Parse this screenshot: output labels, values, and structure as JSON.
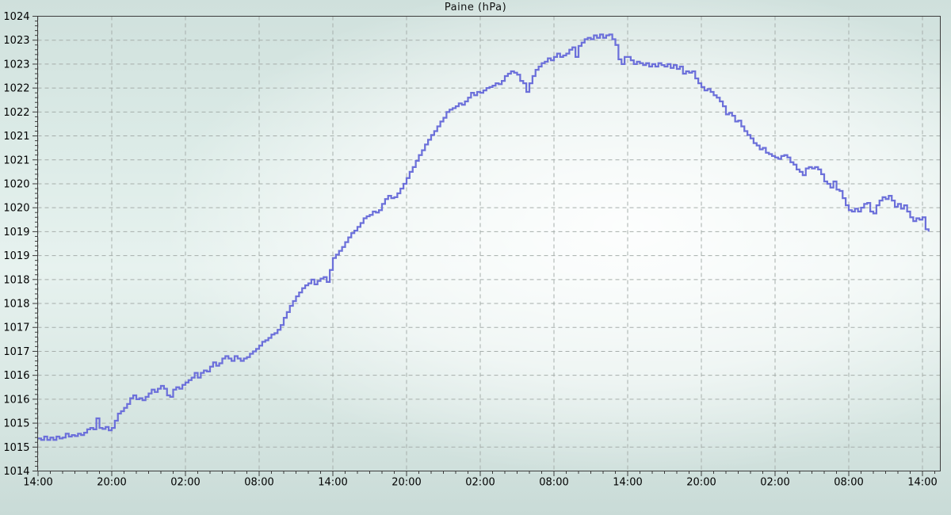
{
  "title": "Paine (hPa)",
  "chart_data": {
    "type": "line",
    "line_style": "step",
    "title": "Paine (hPa)",
    "xlabel": "",
    "ylabel": "",
    "legend": "none",
    "grid": "dashed",
    "colors": {
      "line": "#6c70da",
      "grid": "#a6aeab",
      "axis": "#3c3c3c",
      "text": "#000000",
      "background_edge": "#cbdcd8",
      "background_highlight": "#f8fcfa"
    },
    "x_unit": "hours_from_start",
    "x_start_hour": 0,
    "x_end_hour": 73.5,
    "x_tick_hours": [
      0,
      6,
      12,
      18,
      24,
      30,
      36,
      42,
      48,
      54,
      60,
      66,
      72
    ],
    "x_tick_labels": [
      "14:00",
      "20:00",
      "02:00",
      "08:00",
      "14:00",
      "20:00",
      "02:00",
      "08:00",
      "14:00",
      "20:00",
      "02:00",
      "08:00",
      "14:00"
    ],
    "x_minor_step_hours": 1,
    "y_min": 1014.0,
    "y_max": 1023.5,
    "y_major_step": 0.5,
    "y_minor_step": 0.1,
    "y_tick_labels_top_to_bottom": [
      "1024",
      "1023",
      "1023",
      "1022",
      "1022",
      "1021",
      "1021",
      "1020",
      "1020",
      "1019",
      "1019",
      "1018",
      "1018",
      "1017",
      "1017",
      "1016",
      "1016",
      "1015",
      "1015",
      "1014"
    ],
    "sample_interval_hours": 0.25,
    "values": [
      1014.68,
      1014.65,
      1014.72,
      1014.65,
      1014.7,
      1014.65,
      1014.72,
      1014.68,
      1014.7,
      1014.78,
      1014.72,
      1014.75,
      1014.73,
      1014.78,
      1014.75,
      1014.8,
      1014.87,
      1014.9,
      1014.87,
      1015.1,
      1014.9,
      1014.88,
      1014.92,
      1014.85,
      1014.9,
      1015.05,
      1015.2,
      1015.25,
      1015.32,
      1015.4,
      1015.52,
      1015.58,
      1015.5,
      1015.52,
      1015.48,
      1015.55,
      1015.62,
      1015.7,
      1015.65,
      1015.72,
      1015.78,
      1015.72,
      1015.58,
      1015.55,
      1015.7,
      1015.75,
      1015.72,
      1015.8,
      1015.85,
      1015.9,
      1015.95,
      1016.05,
      1015.95,
      1016.05,
      1016.1,
      1016.08,
      1016.18,
      1016.27,
      1016.2,
      1016.25,
      1016.35,
      1016.4,
      1016.35,
      1016.3,
      1016.4,
      1016.35,
      1016.3,
      1016.35,
      1016.38,
      1016.45,
      1016.5,
      1016.55,
      1016.62,
      1016.7,
      1016.73,
      1016.78,
      1016.85,
      1016.88,
      1016.95,
      1017.05,
      1017.2,
      1017.32,
      1017.45,
      1017.55,
      1017.65,
      1017.73,
      1017.82,
      1017.88,
      1017.92,
      1018.0,
      1017.9,
      1017.97,
      1018.02,
      1018.05,
      1017.95,
      1018.2,
      1018.45,
      1018.52,
      1018.6,
      1018.68,
      1018.78,
      1018.88,
      1018.97,
      1019.02,
      1019.1,
      1019.18,
      1019.28,
      1019.32,
      1019.35,
      1019.42,
      1019.4,
      1019.45,
      1019.58,
      1019.68,
      1019.75,
      1019.7,
      1019.72,
      1019.8,
      1019.9,
      1020.0,
      1020.12,
      1020.25,
      1020.35,
      1020.48,
      1020.6,
      1020.7,
      1020.82,
      1020.92,
      1021.02,
      1021.1,
      1021.2,
      1021.3,
      1021.38,
      1021.5,
      1021.55,
      1021.58,
      1021.62,
      1021.68,
      1021.65,
      1021.72,
      1021.8,
      1021.9,
      1021.85,
      1021.92,
      1021.9,
      1021.95,
      1022.0,
      1022.02,
      1022.05,
      1022.1,
      1022.08,
      1022.15,
      1022.25,
      1022.3,
      1022.35,
      1022.32,
      1022.28,
      1022.15,
      1022.1,
      1021.92,
      1022.1,
      1022.25,
      1022.38,
      1022.45,
      1022.52,
      1022.55,
      1022.62,
      1022.58,
      1022.65,
      1022.72,
      1022.65,
      1022.68,
      1022.72,
      1022.8,
      1022.85,
      1022.65,
      1022.88,
      1022.95,
      1023.02,
      1023.05,
      1023.02,
      1023.1,
      1023.05,
      1023.12,
      1023.05,
      1023.1,
      1023.12,
      1023.02,
      1022.9,
      1022.6,
      1022.5,
      1022.65,
      1022.65,
      1022.58,
      1022.5,
      1022.55,
      1022.52,
      1022.48,
      1022.52,
      1022.45,
      1022.5,
      1022.45,
      1022.52,
      1022.48,
      1022.45,
      1022.5,
      1022.42,
      1022.48,
      1022.4,
      1022.45,
      1022.3,
      1022.35,
      1022.32,
      1022.35,
      1022.2,
      1022.1,
      1022.02,
      1021.95,
      1021.98,
      1021.92,
      1021.85,
      1021.8,
      1021.72,
      1021.62,
      1021.45,
      1021.48,
      1021.42,
      1021.3,
      1021.32,
      1021.2,
      1021.1,
      1021.02,
      1020.95,
      1020.85,
      1020.8,
      1020.72,
      1020.75,
      1020.65,
      1020.62,
      1020.58,
      1020.55,
      1020.52,
      1020.58,
      1020.6,
      1020.55,
      1020.45,
      1020.4,
      1020.3,
      1020.25,
      1020.18,
      1020.32,
      1020.35,
      1020.32,
      1020.35,
      1020.3,
      1020.2,
      1020.05,
      1020.0,
      1019.92,
      1020.05,
      1019.88,
      1019.85,
      1019.7,
      1019.55,
      1019.45,
      1019.42,
      1019.48,
      1019.42,
      1019.5,
      1019.58,
      1019.6,
      1019.42,
      1019.38,
      1019.55,
      1019.65,
      1019.72,
      1019.68,
      1019.75,
      1019.65,
      1019.52,
      1019.58,
      1019.48,
      1019.55,
      1019.42,
      1019.3,
      1019.22,
      1019.28,
      1019.25,
      1019.3,
      1019.05,
      1019.0
    ]
  }
}
